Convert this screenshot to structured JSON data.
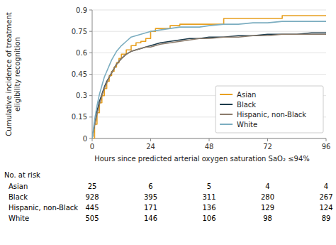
{
  "chart_data": {
    "type": "line",
    "y_label": "Cumulative incidence of treatment\neligibility recognition",
    "x_label": "Hours since predicted arterial oxygen saturation SaO₂ ≤94%",
    "xlim": [
      0,
      96
    ],
    "ylim": [
      0,
      0.9
    ],
    "xticks": [
      0,
      24,
      48,
      72,
      96
    ],
    "yticks": [
      0,
      0.15,
      0.3,
      0.45,
      0.6,
      0.75,
      0.9
    ],
    "grid": "y",
    "legend": "lower right",
    "series": [
      {
        "name": "Asian",
        "color": "#E8A020",
        "line_style": "step",
        "x": [
          0,
          1,
          2,
          3,
          4,
          5,
          6,
          7,
          8,
          9,
          10,
          11,
          12,
          14,
          16,
          18,
          20,
          22,
          24,
          26,
          28,
          32,
          36,
          40,
          44,
          48,
          54,
          60,
          66,
          72,
          78,
          84,
          90,
          96
        ],
        "values": [
          0,
          0.1,
          0.18,
          0.25,
          0.3,
          0.35,
          0.4,
          0.44,
          0.47,
          0.5,
          0.53,
          0.56,
          0.59,
          0.62,
          0.65,
          0.67,
          0.68,
          0.7,
          0.75,
          0.77,
          0.77,
          0.79,
          0.8,
          0.8,
          0.8,
          0.8,
          0.84,
          0.84,
          0.84,
          0.84,
          0.86,
          0.86,
          0.86,
          0.86
        ]
      },
      {
        "name": "Black",
        "color": "#1C3A4A",
        "line_style": "solid",
        "x": [
          0,
          1,
          2,
          3,
          4,
          5,
          6,
          7,
          8,
          9,
          10,
          12,
          14,
          16,
          18,
          20,
          22,
          24,
          28,
          32,
          36,
          40,
          44,
          48,
          54,
          60,
          66,
          72,
          78,
          84,
          90,
          96
        ],
        "values": [
          0,
          0.1,
          0.19,
          0.26,
          0.31,
          0.36,
          0.4,
          0.43,
          0.46,
          0.49,
          0.52,
          0.56,
          0.59,
          0.61,
          0.62,
          0.63,
          0.64,
          0.65,
          0.67,
          0.68,
          0.69,
          0.7,
          0.7,
          0.71,
          0.71,
          0.72,
          0.72,
          0.73,
          0.73,
          0.73,
          0.74,
          0.74
        ]
      },
      {
        "name": "Hispanic, non-Black",
        "color": "#8B7B6B",
        "line_style": "solid",
        "x": [
          0,
          1,
          2,
          3,
          4,
          5,
          6,
          7,
          8,
          9,
          10,
          12,
          14,
          16,
          18,
          20,
          22,
          24,
          28,
          32,
          36,
          40,
          44,
          48,
          54,
          60,
          66,
          72,
          78,
          84,
          90,
          96
        ],
        "values": [
          0,
          0.09,
          0.17,
          0.24,
          0.3,
          0.35,
          0.39,
          0.43,
          0.46,
          0.49,
          0.52,
          0.56,
          0.59,
          0.61,
          0.62,
          0.63,
          0.64,
          0.64,
          0.66,
          0.67,
          0.68,
          0.69,
          0.7,
          0.7,
          0.71,
          0.71,
          0.72,
          0.72,
          0.73,
          0.73,
          0.73,
          0.73
        ]
      },
      {
        "name": "White",
        "color": "#7BADC0",
        "line_style": "solid",
        "x": [
          0,
          1,
          2,
          3,
          4,
          5,
          6,
          7,
          8,
          9,
          10,
          12,
          14,
          16,
          18,
          20,
          22,
          24,
          28,
          32,
          36,
          40,
          44,
          48,
          54,
          60,
          66,
          72,
          78,
          84,
          90,
          96
        ],
        "values": [
          0,
          0.13,
          0.23,
          0.31,
          0.37,
          0.43,
          0.47,
          0.51,
          0.55,
          0.58,
          0.61,
          0.65,
          0.68,
          0.71,
          0.72,
          0.73,
          0.74,
          0.75,
          0.76,
          0.77,
          0.78,
          0.78,
          0.78,
          0.79,
          0.8,
          0.8,
          0.81,
          0.81,
          0.82,
          0.82,
          0.82,
          0.82
        ]
      }
    ],
    "risk_table": {
      "label": "No. at risk",
      "times": [
        0,
        24,
        48,
        72,
        96
      ],
      "rows": [
        {
          "name": "Asian",
          "values": [
            25,
            6,
            5,
            4,
            4
          ]
        },
        {
          "name": "Black",
          "values": [
            928,
            395,
            311,
            280,
            267
          ]
        },
        {
          "name": "Hispanic, non-Black",
          "values": [
            445,
            171,
            136,
            129,
            124
          ]
        },
        {
          "name": "White",
          "values": [
            505,
            146,
            106,
            98,
            89
          ]
        }
      ]
    }
  }
}
